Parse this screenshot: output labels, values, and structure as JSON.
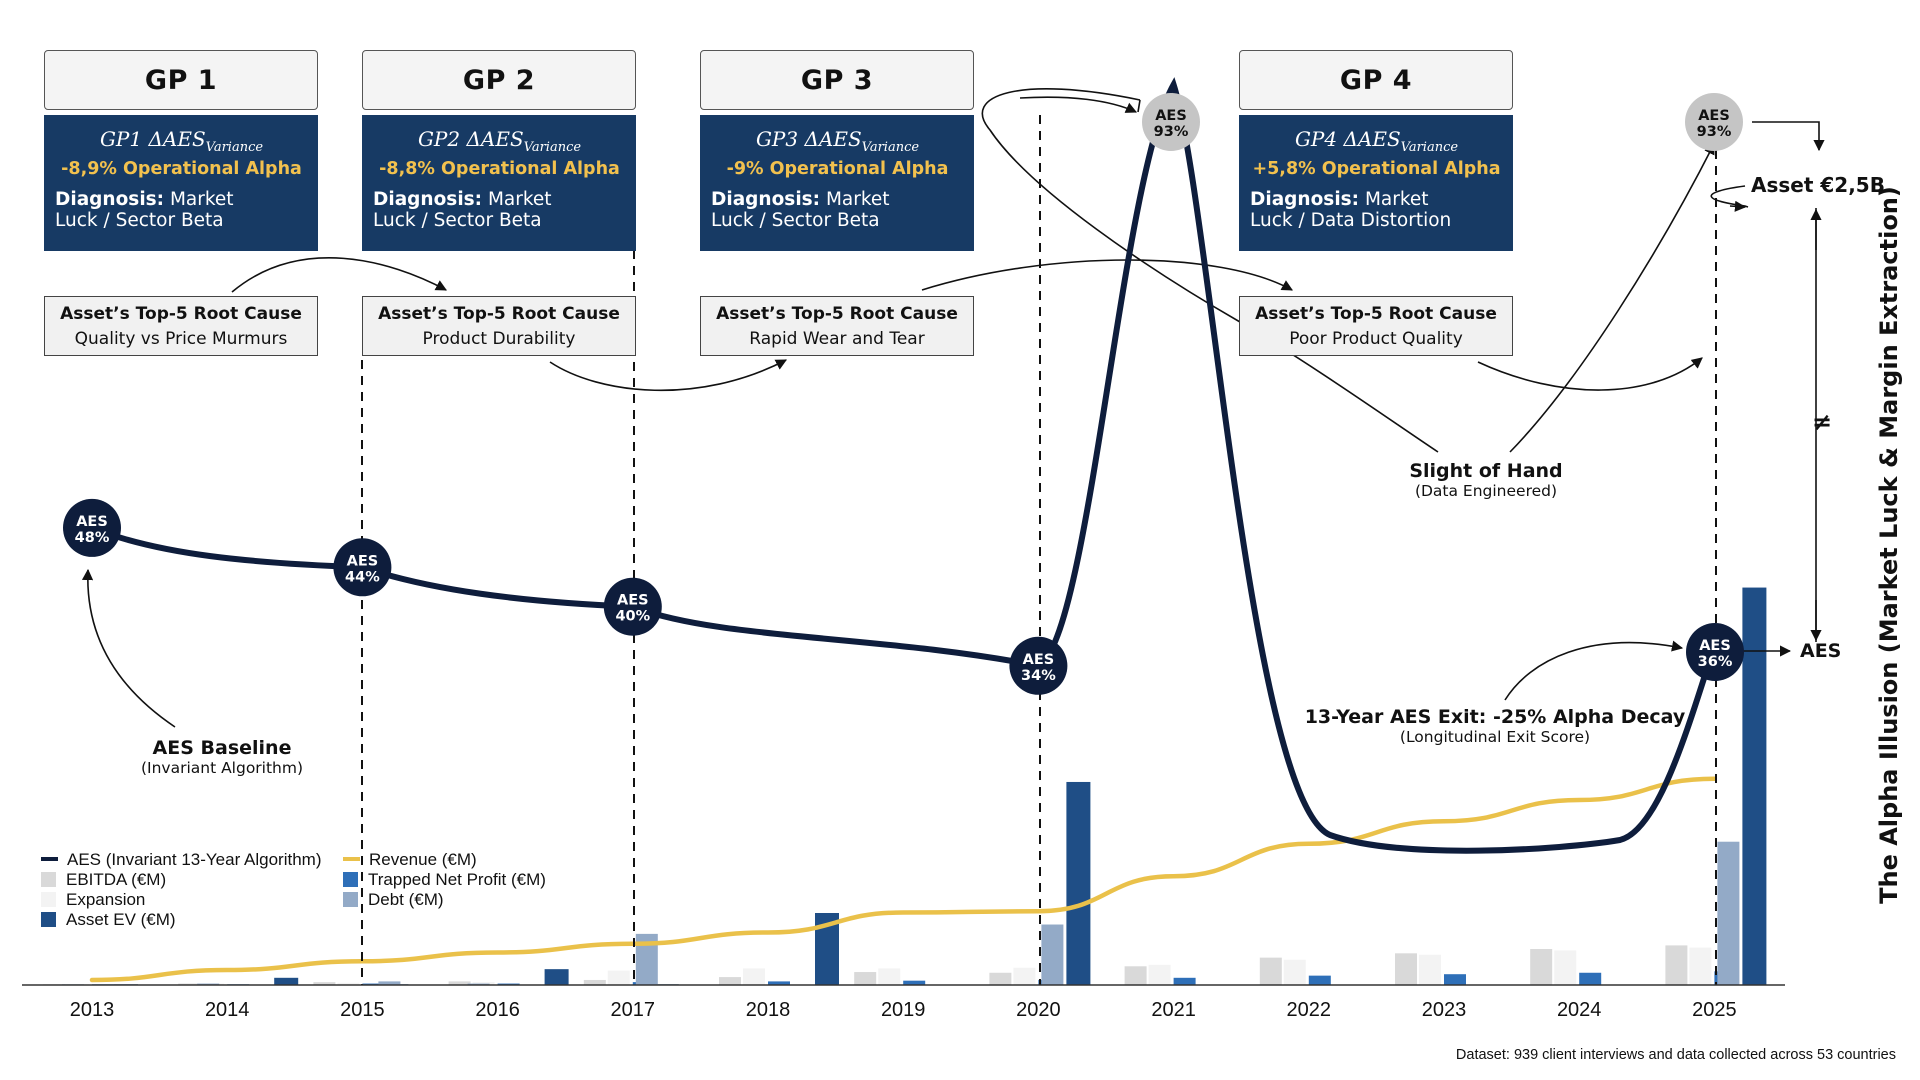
{
  "chart_data": {
    "type": "bar",
    "x": [
      "2013",
      "2014",
      "2015",
      "2016",
      "2017",
      "2018",
      "2019",
      "2020",
      "2021",
      "2022",
      "2023",
      "2024",
      "2025"
    ],
    "series": [
      {
        "name": "EBITDA (€M)",
        "kind": "bar",
        "color": "#d9d9d9",
        "values": [
          1,
          2,
          4,
          5,
          7,
          11,
          18,
          17,
          26,
          38,
          44,
          50,
          55
        ]
      },
      {
        "name": "Expansion",
        "kind": "bar",
        "color": "#f3f3f3",
        "values": [
          1,
          2,
          3,
          4,
          20,
          23,
          23,
          24,
          28,
          35,
          42,
          48,
          52
        ]
      },
      {
        "name": "Asset EV (€M)",
        "kind": "bar",
        "color": "#1f4e86",
        "values": [
          1,
          10,
          1,
          22,
          1,
          100,
          null,
          282,
          null,
          null,
          null,
          null,
          552
        ]
      },
      {
        "name": "Trapped Net Profit (€M)",
        "kind": "bar",
        "color": "#2e6fb8",
        "values": [
          1,
          1,
          2,
          2,
          4,
          5,
          6,
          7,
          10,
          13,
          15,
          17,
          19
        ]
      },
      {
        "name": "Debt (€M)",
        "kind": "bar",
        "color": "#93aac7",
        "values": [
          1,
          2,
          5,
          2,
          71,
          null,
          null,
          84,
          null,
          null,
          null,
          null,
          199
        ]
      },
      {
        "name": "Revenue (€M)",
        "kind": "line",
        "color": "#eac14a",
        "x": [
          2013,
          2014,
          2015,
          2016,
          2017,
          2018,
          2019,
          2020,
          2021,
          2022,
          2023,
          2024,
          2025
        ],
        "values": [
          4,
          12,
          19,
          26,
          33,
          42,
          58,
          59,
          87,
          113,
          131,
          148,
          165
        ]
      },
      {
        "name": "AES (Invariant 13-Year Algorithm)",
        "kind": "line",
        "color": "#0e1d3c",
        "x": [
          2013,
          2015,
          2017,
          2020,
          2021,
          2022,
          2024,
          2025
        ],
        "values": [
          48,
          44,
          40,
          34,
          93,
          14,
          14,
          36
        ]
      }
    ],
    "aes_markers": [
      {
        "year": 2013,
        "label": "AES",
        "value": "48%"
      },
      {
        "year": 2015,
        "label": "AES",
        "value": "44%"
      },
      {
        "year": 2017,
        "label": "AES",
        "value": "40%"
      },
      {
        "year": 2020,
        "label": "AES",
        "value": "34%"
      },
      {
        "year": 2021,
        "label": "AES",
        "value": "93%"
      },
      {
        "year": 2025,
        "label": "AES",
        "value": "36%"
      },
      {
        "year": 2025,
        "label": "AES",
        "value": "93%"
      }
    ],
    "legend_placement": "bottom-left",
    "grid": false
  },
  "gp_headers": [
    "GP 1",
    "GP 2",
    "GP 3",
    "GP 4"
  ],
  "gp_boxes": [
    {
      "formula_prefix": "GP1 ΔAES",
      "formula_sub": "Variance",
      "alpha": "-8,9% Operational Alpha",
      "diag_label": "Diagnosis:",
      "diag_line1": " Market",
      "diag_line2": "Luck / Sector Beta"
    },
    {
      "formula_prefix": "GP2 ΔAES",
      "formula_sub": "Variance",
      "alpha": "-8,8% Operational Alpha",
      "diag_label": "Diagnosis:",
      "diag_line1": " Market",
      "diag_line2": "Luck / Sector Beta"
    },
    {
      "formula_prefix": "GP3 ΔAES",
      "formula_sub": "Variance",
      "alpha": "-9% Operational Alpha",
      "diag_label": "Diagnosis:",
      "diag_line1": " Market",
      "diag_line2": "Luck / Sector Beta"
    },
    {
      "formula_prefix": "GP4 ΔAES",
      "formula_sub": "Variance",
      "alpha": "+5,8% Operational Alpha",
      "diag_label": "Diagnosis:",
      "diag_line1": " Market",
      "diag_line2": "Luck / Data Distortion"
    }
  ],
  "root_causes": [
    {
      "title": "Asset’s Top-5 Root Cause",
      "sub": "Quality vs Price Murmurs"
    },
    {
      "title": "Asset’s Top-5 Root Cause",
      "sub": "Product Durability"
    },
    {
      "title": "Asset’s Top-5 Root Cause",
      "sub": "Rapid Wear and Tear"
    },
    {
      "title": "Asset’s Top-5 Root Cause",
      "sub": "Poor Product Quality"
    }
  ],
  "annotations": {
    "baseline_main": "AES Baseline",
    "baseline_sub": "(Invariant Algorithm)",
    "slight_main": "Slight of Hand",
    "slight_sub": "(Data Engineered)",
    "exit_main": "13-Year AES Exit: -25% Alpha Decay",
    "exit_sub": "(Longitudinal Exit Score)",
    "asset_label": "Asset €2,5B",
    "aes_label": "AES",
    "neq": "≠"
  },
  "side_title": "The Alpha Illusion (Market Luck & Margin Extraction)",
  "footnote": "Dataset: 939 client interviews and data collected across 53 countries",
  "legend": [
    {
      "label": "AES (Invariant 13-Year Algorithm)",
      "color": "#0e1d3c",
      "shape": "line"
    },
    {
      "label": "EBITDA (€M)",
      "color": "#d9d9d9",
      "shape": "square"
    },
    {
      "label": "Expansion",
      "color": "#f3f3f3",
      "shape": "square"
    },
    {
      "label": "Asset EV (€M)",
      "color": "#1f4e86",
      "shape": "square"
    },
    {
      "label": "Revenue (€M)",
      "color": "#eac14a",
      "shape": "line"
    },
    {
      "label": "Trapped Net Profit (€M)",
      "color": "#2e6fb8",
      "shape": "square"
    },
    {
      "label": "Debt (€M)",
      "color": "#93aac7",
      "shape": "square"
    }
  ]
}
